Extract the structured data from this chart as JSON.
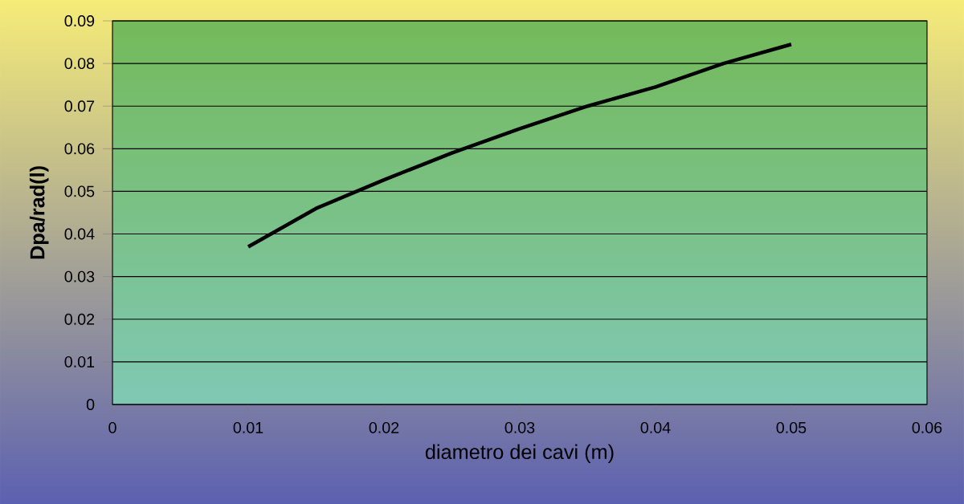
{
  "chart_data": {
    "type": "line",
    "xlabel": "diametro dei cavi (m)",
    "ylabel": "Dpa/rad(l)",
    "x": [
      0.01,
      0.015,
      0.02,
      0.025,
      0.03,
      0.035,
      0.04,
      0.045,
      0.05
    ],
    "series": [
      {
        "color": "#000000",
        "values": [
          0.037,
          0.046,
          0.0527,
          0.059,
          0.0647,
          0.07,
          0.0745,
          0.08,
          0.0845
        ]
      }
    ],
    "xlim": [
      0,
      0.06
    ],
    "ylim": [
      0,
      0.09
    ],
    "xticks": [
      0,
      0.01,
      0.02,
      0.03,
      0.04,
      0.05,
      0.06
    ],
    "yticks": [
      0,
      0.01,
      0.02,
      0.03,
      0.04,
      0.05,
      0.06,
      0.07,
      0.08,
      0.09
    ],
    "grid": "y",
    "marker": "none",
    "line_style": "solid"
  }
}
